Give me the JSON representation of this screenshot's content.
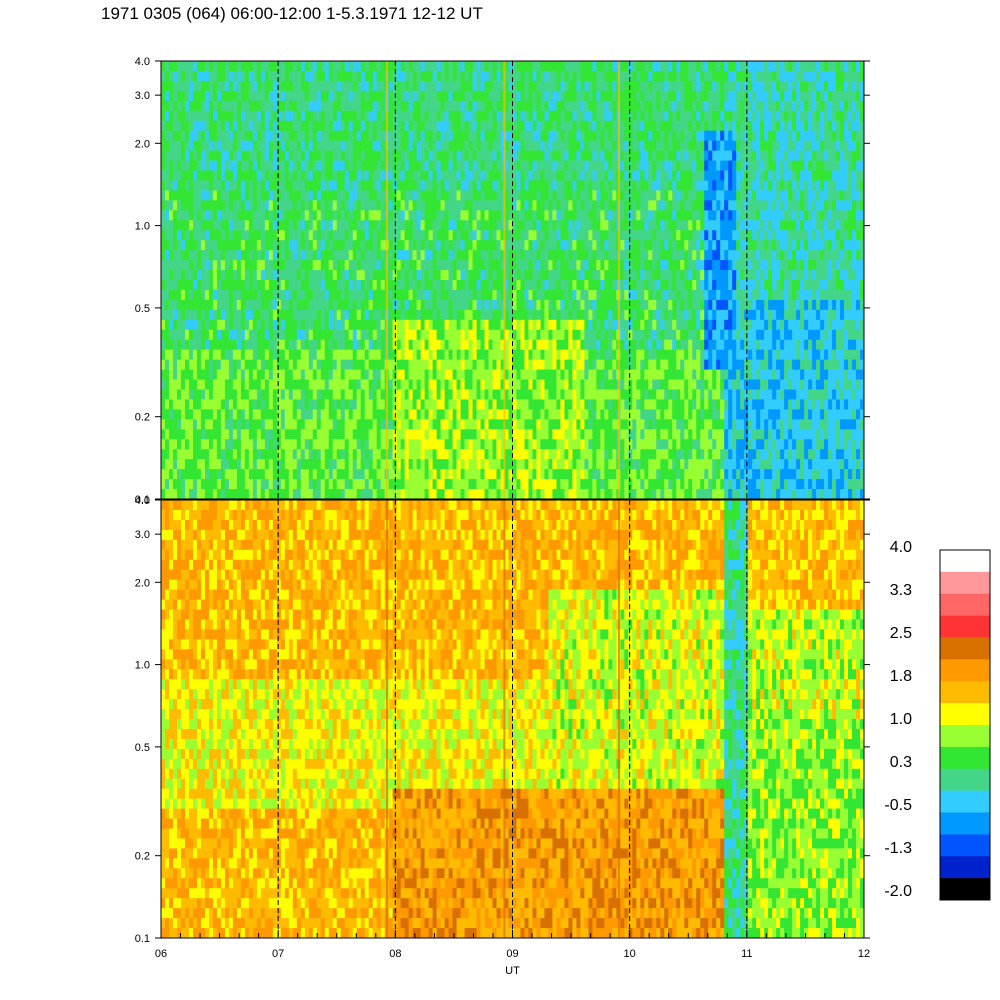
{
  "title": "1971 0305 (064) 06:00-12:00 1-5.3.1971  12-12 UT",
  "chart_data": [
    {
      "type": "heatmap",
      "panel": "top",
      "x_range": [
        "06",
        "12"
      ],
      "x_ticks": [
        "06",
        "07",
        "08",
        "09",
        "10",
        "11",
        "12"
      ],
      "y_scale": "log",
      "y_range": [
        0.1,
        4.0
      ],
      "y_ticks": [
        4.0,
        3.0,
        2.0,
        1.0,
        0.5,
        0.2,
        0.1
      ],
      "y_tick_labels": [
        "4.0",
        "3.0",
        "2.0",
        "1.0",
        "0.5",
        "0.2",
        "0.1"
      ],
      "vertical_dashed_lines_at": [
        "07",
        "08",
        "09",
        "10",
        "11"
      ]
    },
    {
      "type": "heatmap",
      "panel": "bottom",
      "x_range": [
        "06",
        "12"
      ],
      "x_ticks": [
        "06",
        "07",
        "08",
        "09",
        "10",
        "11",
        "12"
      ],
      "x_tick_labels": [
        "06",
        "07",
        "08",
        "09",
        "10",
        "11",
        "12"
      ],
      "xlabel": "UT",
      "y_scale": "log",
      "y_range": [
        0.1,
        4.0
      ],
      "y_ticks": [
        4.0,
        3.0,
        2.0,
        1.0,
        0.5,
        0.2,
        0.1
      ],
      "y_tick_labels": [
        "4.0",
        "3.0",
        "2.0",
        "1.0",
        "0.5",
        "0.2",
        "0.1"
      ],
      "vertical_dashed_lines_at": [
        "07",
        "08",
        "09",
        "10",
        "11"
      ]
    }
  ],
  "colorbar": {
    "labels": [
      "4.0",
      "3.3",
      "2.5",
      "1.8",
      "1.0",
      "0.3",
      "-0.5",
      "-1.3",
      "-2.0"
    ],
    "colors": [
      "#ffffff",
      "#ff9999",
      "#ff6666",
      "#ff3333",
      "#d87000",
      "#ff9900",
      "#ffbb00",
      "#ffff00",
      "#99ff33",
      "#33e633",
      "#44d688",
      "#33ccff",
      "#0099ff",
      "#0055ff",
      "#0022cc",
      "#000000"
    ]
  }
}
